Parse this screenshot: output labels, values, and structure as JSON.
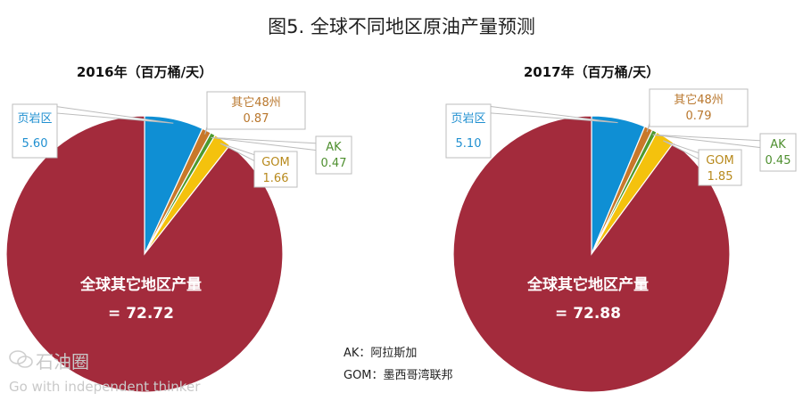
{
  "title": "图5. 全球不同地区原油产量预测",
  "chart_data": [
    {
      "type": "pie",
      "title": "2016年（百万桶/天）",
      "slices": [
        {
          "label": "页岩区",
          "value": 5.6,
          "color": "#0f8fd4",
          "label_color": "#1f8fd0"
        },
        {
          "label": "其它48州",
          "value": 0.87,
          "color": "#c8782a",
          "label_color": "#b9772d"
        },
        {
          "label": "AK",
          "value": 0.47,
          "color": "#4e9a2d",
          "label_color": "#4e8f2f"
        },
        {
          "label": "GOM",
          "value": 1.66,
          "color": "#f4c20d",
          "label_color": "#b88a1d"
        },
        {
          "label": "全球其它地区产量",
          "value": 72.72,
          "color": "#a32b3c",
          "label_color": "#ffffff"
        }
      ]
    },
    {
      "type": "pie",
      "title": "2017年（百万桶/天）",
      "slices": [
        {
          "label": "页岩区",
          "value": 5.1,
          "color": "#0f8fd4",
          "label_color": "#1f8fd0"
        },
        {
          "label": "其它48州",
          "value": 0.79,
          "color": "#c8782a",
          "label_color": "#b9772d"
        },
        {
          "label": "AK",
          "value": 0.45,
          "color": "#4e9a2d",
          "label_color": "#4e8f2f"
        },
        {
          "label": "GOM",
          "value": 1.85,
          "color": "#f4c20d",
          "label_color": "#b88a1d"
        },
        {
          "label": "全球其它地区产量",
          "value": 72.88,
          "color": "#a32b3c",
          "label_color": "#ffffff"
        }
      ]
    }
  ],
  "legend_notes": [
    "AK：阿拉斯加",
    "GOM：墨西哥湾联邦"
  ],
  "watermark": {
    "name": "石油圈",
    "slogan": "Go with independent thinker"
  }
}
